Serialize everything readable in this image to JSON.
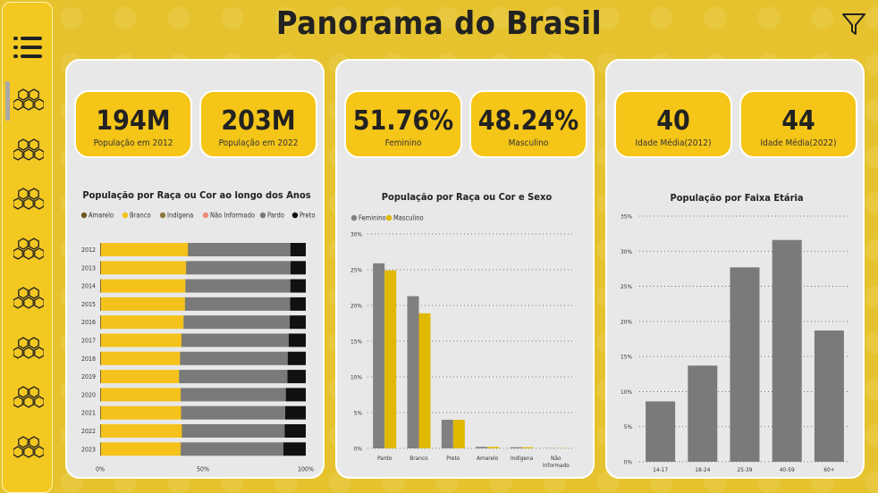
{
  "title": "Panorama do Brasil",
  "sidebar": {
    "menu_icon": "hamburger-menu-icon",
    "item_icon": "honeycomb-icon",
    "item_count": 8
  },
  "filter_icon": "filter-icon",
  "colors": {
    "amarelo": "#6b5a1e",
    "branco": "#f5c21b",
    "indigena": "#8a7a3a",
    "nao_informado": "#f08a7a",
    "pardo": "#7a7a7a",
    "preto": "#111111",
    "feminino": "#808080",
    "masculino": "#e0b800",
    "faixa": "#7a7a7a"
  },
  "panel1": {
    "kpis": [
      {
        "value": "194M",
        "label": "População em 2012"
      },
      {
        "value": "203M",
        "label": "População em 2022"
      }
    ],
    "chart_data": {
      "type": "bar",
      "orientation": "horizontal-stacked-100",
      "title": "População por Raça ou Cor ao longo dos Anos",
      "legend": [
        "Amarelo",
        "Branco",
        "Indígena",
        "Não Informado",
        "Pardo",
        "Preto"
      ],
      "categories": [
        "2012",
        "2013",
        "2014",
        "2015",
        "2016",
        "2017",
        "2018",
        "2019",
        "2020",
        "2021",
        "2022",
        "2023"
      ],
      "series": [
        {
          "name": "Amarelo",
          "values": [
            0.4,
            0.4,
            0.4,
            0.4,
            0.4,
            0.4,
            0.4,
            0.4,
            0.4,
            0.4,
            0.4,
            0.4
          ]
        },
        {
          "name": "Branco",
          "values": [
            42.2,
            41.3,
            41.0,
            40.8,
            40.1,
            39.1,
            38.4,
            37.9,
            38.7,
            38.9,
            39.3,
            38.7
          ]
        },
        {
          "name": "Indígena",
          "values": [
            0.3,
            0.3,
            0.3,
            0.3,
            0.3,
            0.3,
            0.3,
            0.3,
            0.3,
            0.3,
            0.3,
            0.3
          ]
        },
        {
          "name": "Não Informado",
          "values": [
            0,
            0,
            0,
            0,
            0,
            0,
            0,
            0,
            0,
            0,
            0,
            0
          ]
        },
        {
          "name": "Pardo",
          "values": [
            49.6,
            50.6,
            50.8,
            50.9,
            51.4,
            51.9,
            52.1,
            52.5,
            50.9,
            50.4,
            49.7,
            49.7
          ]
        },
        {
          "name": "Preto",
          "values": [
            7.5,
            7.4,
            7.5,
            7.6,
            7.8,
            8.3,
            8.8,
            8.9,
            9.7,
            10.0,
            10.3,
            10.9
          ]
        }
      ],
      "x_ticks": [
        "0%",
        "50%",
        "100%"
      ],
      "xlim": [
        0,
        100
      ]
    }
  },
  "panel2": {
    "kpis": [
      {
        "value": "51.76%",
        "label": "Feminino"
      },
      {
        "value": "48.24%",
        "label": "Masculino"
      }
    ],
    "chart_data": {
      "type": "bar",
      "title": "População por Raça ou Cor e Sexo",
      "legend": [
        "Feminino",
        "Masculino"
      ],
      "categories": [
        "Pardo",
        "Branco",
        "Preto",
        "Amarelo",
        "Indígena",
        "Não Informado"
      ],
      "series": [
        {
          "name": "Feminino",
          "values": [
            25.9,
            21.3,
            4.0,
            0.2,
            0.15,
            0.03
          ]
        },
        {
          "name": "Masculino",
          "values": [
            24.9,
            18.9,
            4.0,
            0.2,
            0.15,
            0.03
          ]
        }
      ],
      "y_ticks": [
        "0%",
        "5%",
        "10%",
        "15%",
        "20%",
        "25%",
        "30%"
      ],
      "ylim": [
        0,
        30
      ]
    }
  },
  "panel3": {
    "kpis": [
      {
        "value": "40",
        "label": "Idade Média(2012)"
      },
      {
        "value": "44",
        "label": "Idade Média(2022)"
      }
    ],
    "chart_data": {
      "type": "bar",
      "title": "População por Faixa Etária",
      "categories": [
        "14-17",
        "18-24",
        "25-39",
        "40-59",
        "60+"
      ],
      "values": [
        8.6,
        13.7,
        27.7,
        31.6,
        18.7
      ],
      "y_ticks": [
        "0%",
        "5%",
        "10%",
        "15%",
        "20%",
        "25%",
        "30%",
        "35%"
      ],
      "ylim": [
        0,
        35
      ]
    }
  }
}
